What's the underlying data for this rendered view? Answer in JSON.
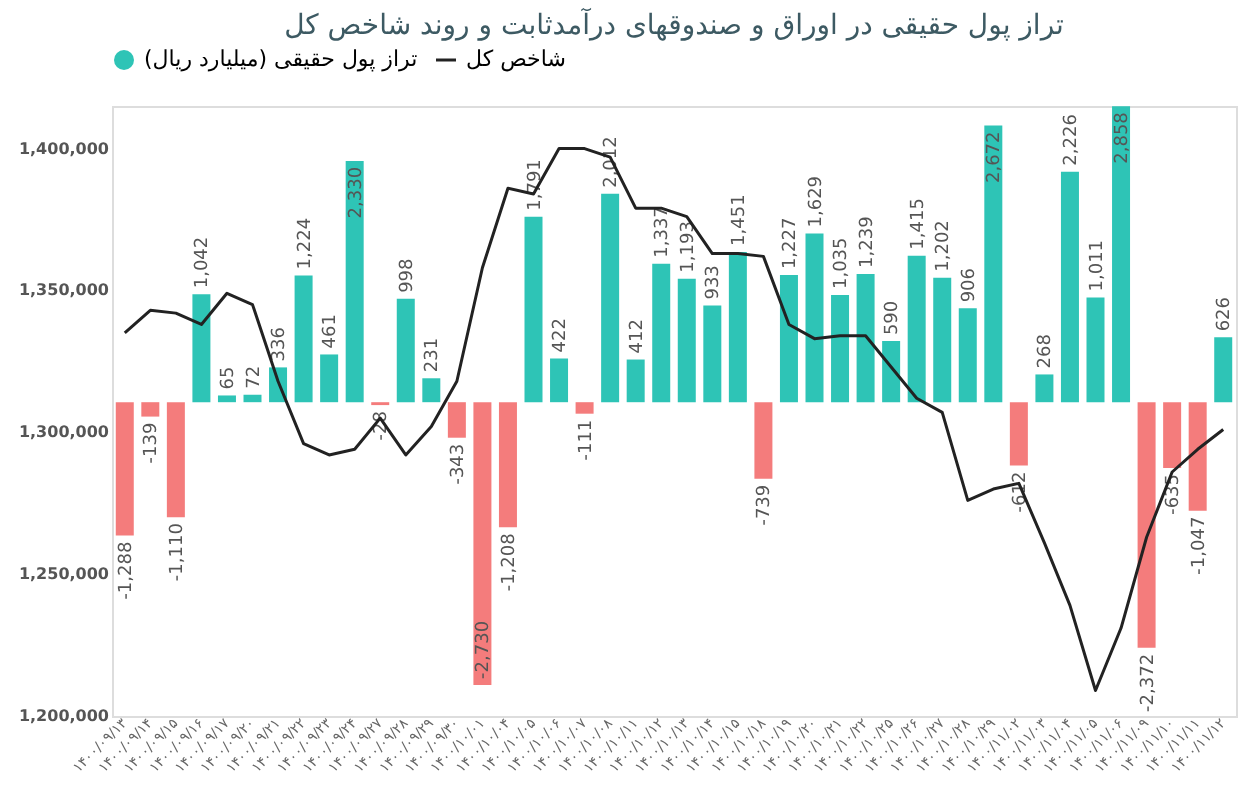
{
  "chart_data": {
    "type": "bar",
    "title": "تراز پول حقیقی در اوراق و صندوقهای درآمدثابت و روند شاخص کل",
    "categories": [
      "۱۴۰۰/۰۹/۱۳",
      "۱۴۰۰/۰۹/۱۴",
      "۱۴۰۰/۰۹/۱۵",
      "۱۴۰۰/۰۹/۱۶",
      "۱۴۰۰/۰۹/۱۷",
      "۱۴۰۰/۰۹/۲۰",
      "۱۴۰۰/۰۹/۲۱",
      "۱۴۰۰/۰۹/۲۲",
      "۱۴۰۰/۰۹/۲۳",
      "۱۴۰۰/۰۹/۲۴",
      "۱۴۰۰/۰۹/۲۷",
      "۱۴۰۰/۰۹/۲۸",
      "۱۴۰۰/۰۹/۲۹",
      "۱۴۰۰/۰۹/۳۰",
      "۱۴۰۰/۱۰/۰۱",
      "۱۴۰۰/۱۰/۰۴",
      "۱۴۰۰/۱۰/۰۵",
      "۱۴۰۰/۱۰/۰۶",
      "۱۴۰۰/۱۰/۰۷",
      "۱۴۰۰/۱۰/۰۸",
      "۱۴۰۰/۱۰/۱۱",
      "۱۴۰۰/۱۰/۱۲",
      "۱۴۰۰/۱۰/۱۳",
      "۱۴۰۰/۱۰/۱۴",
      "۱۴۰۰/۱۰/۱۵",
      "۱۴۰۰/۱۰/۱۸",
      "۱۴۰۰/۱۰/۱۹",
      "۱۴۰۰/۱۰/۲۰",
      "۱۴۰۰/۱۰/۲۱",
      "۱۴۰۰/۱۰/۲۲",
      "۱۴۰۰/۱۰/۲۵",
      "۱۴۰۰/۱۰/۲۶",
      "۱۴۰۰/۱۰/۲۷",
      "۱۴۰۰/۱۰/۲۸",
      "۱۴۰۰/۱۰/۲۹",
      "۱۴۰۰/۱۱/۰۲",
      "۱۴۰۰/۱۱/۰۳",
      "۱۴۰۰/۱۱/۰۴",
      "۱۴۰۰/۱۱/۰۵",
      "۱۴۰۰/۱۱/۰۶",
      "۱۴۰۰/۱۱/۰۹",
      "۱۴۰۰/۱۱/۱۰",
      "۱۴۰۰/۱۱/۱۱",
      "۱۴۰۰/۱۱/۱۲"
    ],
    "series": [
      {
        "name": "تراز پول حقیقی (میلیارد ریال)",
        "axis": "y2",
        "value_labels": [
          "-1,288",
          "-139",
          "-1,110",
          "1,042",
          "65",
          "72",
          "336",
          "1,224",
          "461",
          "2,330",
          "-28",
          "998",
          "231",
          "-343",
          "-2,730",
          "-1,208",
          "1,791",
          "422",
          "-111",
          "2,012",
          "412",
          "1,337",
          "1,193",
          "933",
          "1,451",
          "-739",
          "1,227",
          "1,629",
          "1,035",
          "1,239",
          "590",
          "1,415",
          "1,202",
          "906",
          "2,672",
          "-612",
          "268",
          "2,226",
          "1,011",
          "2,858",
          "-2,372",
          "-635",
          "-1,047",
          "626"
        ],
        "color": "#2ec4b6",
        "colors": [
          "#f47c7c",
          "#f47c7c",
          "#f47c7c",
          "#2ec4b6",
          "#2ec4b6",
          "#2ec4b6",
          "#2ec4b6",
          "#2ec4b6",
          "#2ec4b6",
          "#2ec4b6",
          "#f47c7c",
          "#2ec4b6",
          "#2ec4b6",
          "#f47c7c",
          "#f47c7c",
          "#f47c7c",
          "#2ec4b6",
          "#2ec4b6",
          "#f47c7c",
          "#2ec4b6",
          "#2ec4b6",
          "#2ec4b6",
          "#2ec4b6",
          "#2ec4b6",
          "#2ec4b6",
          "#f47c7c",
          "#2ec4b6",
          "#2ec4b6",
          "#2ec4b6",
          "#2ec4b6",
          "#2ec4b6",
          "#2ec4b6",
          "#2ec4b6",
          "#2ec4b6",
          "#2ec4b6",
          "#f47c7c",
          "#2ec4b6",
          "#2ec4b6",
          "#2ec4b6",
          "#2ec4b6",
          "#f47c7c",
          "#f47c7c",
          "#f47c7c",
          "#2ec4b6"
        ],
        "values": [
          -1288,
          -139,
          -1110,
          1042,
          65,
          72,
          336,
          1224,
          461,
          2330,
          -28,
          998,
          231,
          -343,
          -2730,
          -1208,
          1791,
          422,
          -111,
          2012,
          412,
          1337,
          1193,
          933,
          1451,
          -739,
          1227,
          1629,
          1035,
          1239,
          590,
          1415,
          1202,
          906,
          2672,
          -612,
          268,
          2226,
          1011,
          2858,
          -2372,
          -635,
          -1047,
          626
        ]
      },
      {
        "name": "شاخص کل",
        "type": "line",
        "color": "#222222",
        "values": [
          1335000,
          1343000,
          1342000,
          1338000,
          1349000,
          1345000,
          1318000,
          1296000,
          1292000,
          1294000,
          1305000,
          1292000,
          1302000,
          1318000,
          1358000,
          1386000,
          1384000,
          1400000,
          1400000,
          1397000,
          1379000,
          1379000,
          1376000,
          1363000,
          1363000,
          1362000,
          1338000,
          1333000,
          1334000,
          1334000,
          1323000,
          1312000,
          1307000,
          1276000,
          1280000,
          1282000,
          1261000,
          1239000,
          1209000,
          1231000,
          1263000,
          1286000,
          1294000,
          1301000
        ]
      }
    ],
    "ylim": [
      1200000,
      1415000
    ],
    "yticks": [
      {
        "value": 1200000,
        "label": "1,200,000"
      },
      {
        "value": 1250000,
        "label": "1,250,000"
      },
      {
        "value": 1300000,
        "label": "1,300,000"
      },
      {
        "value": 1350000,
        "label": "1,350,000"
      },
      {
        "value": 1400000,
        "label": "1,400,000"
      }
    ],
    "y2lim": [
      -3030,
      2860
    ],
    "legend": "top",
    "grid": false
  }
}
